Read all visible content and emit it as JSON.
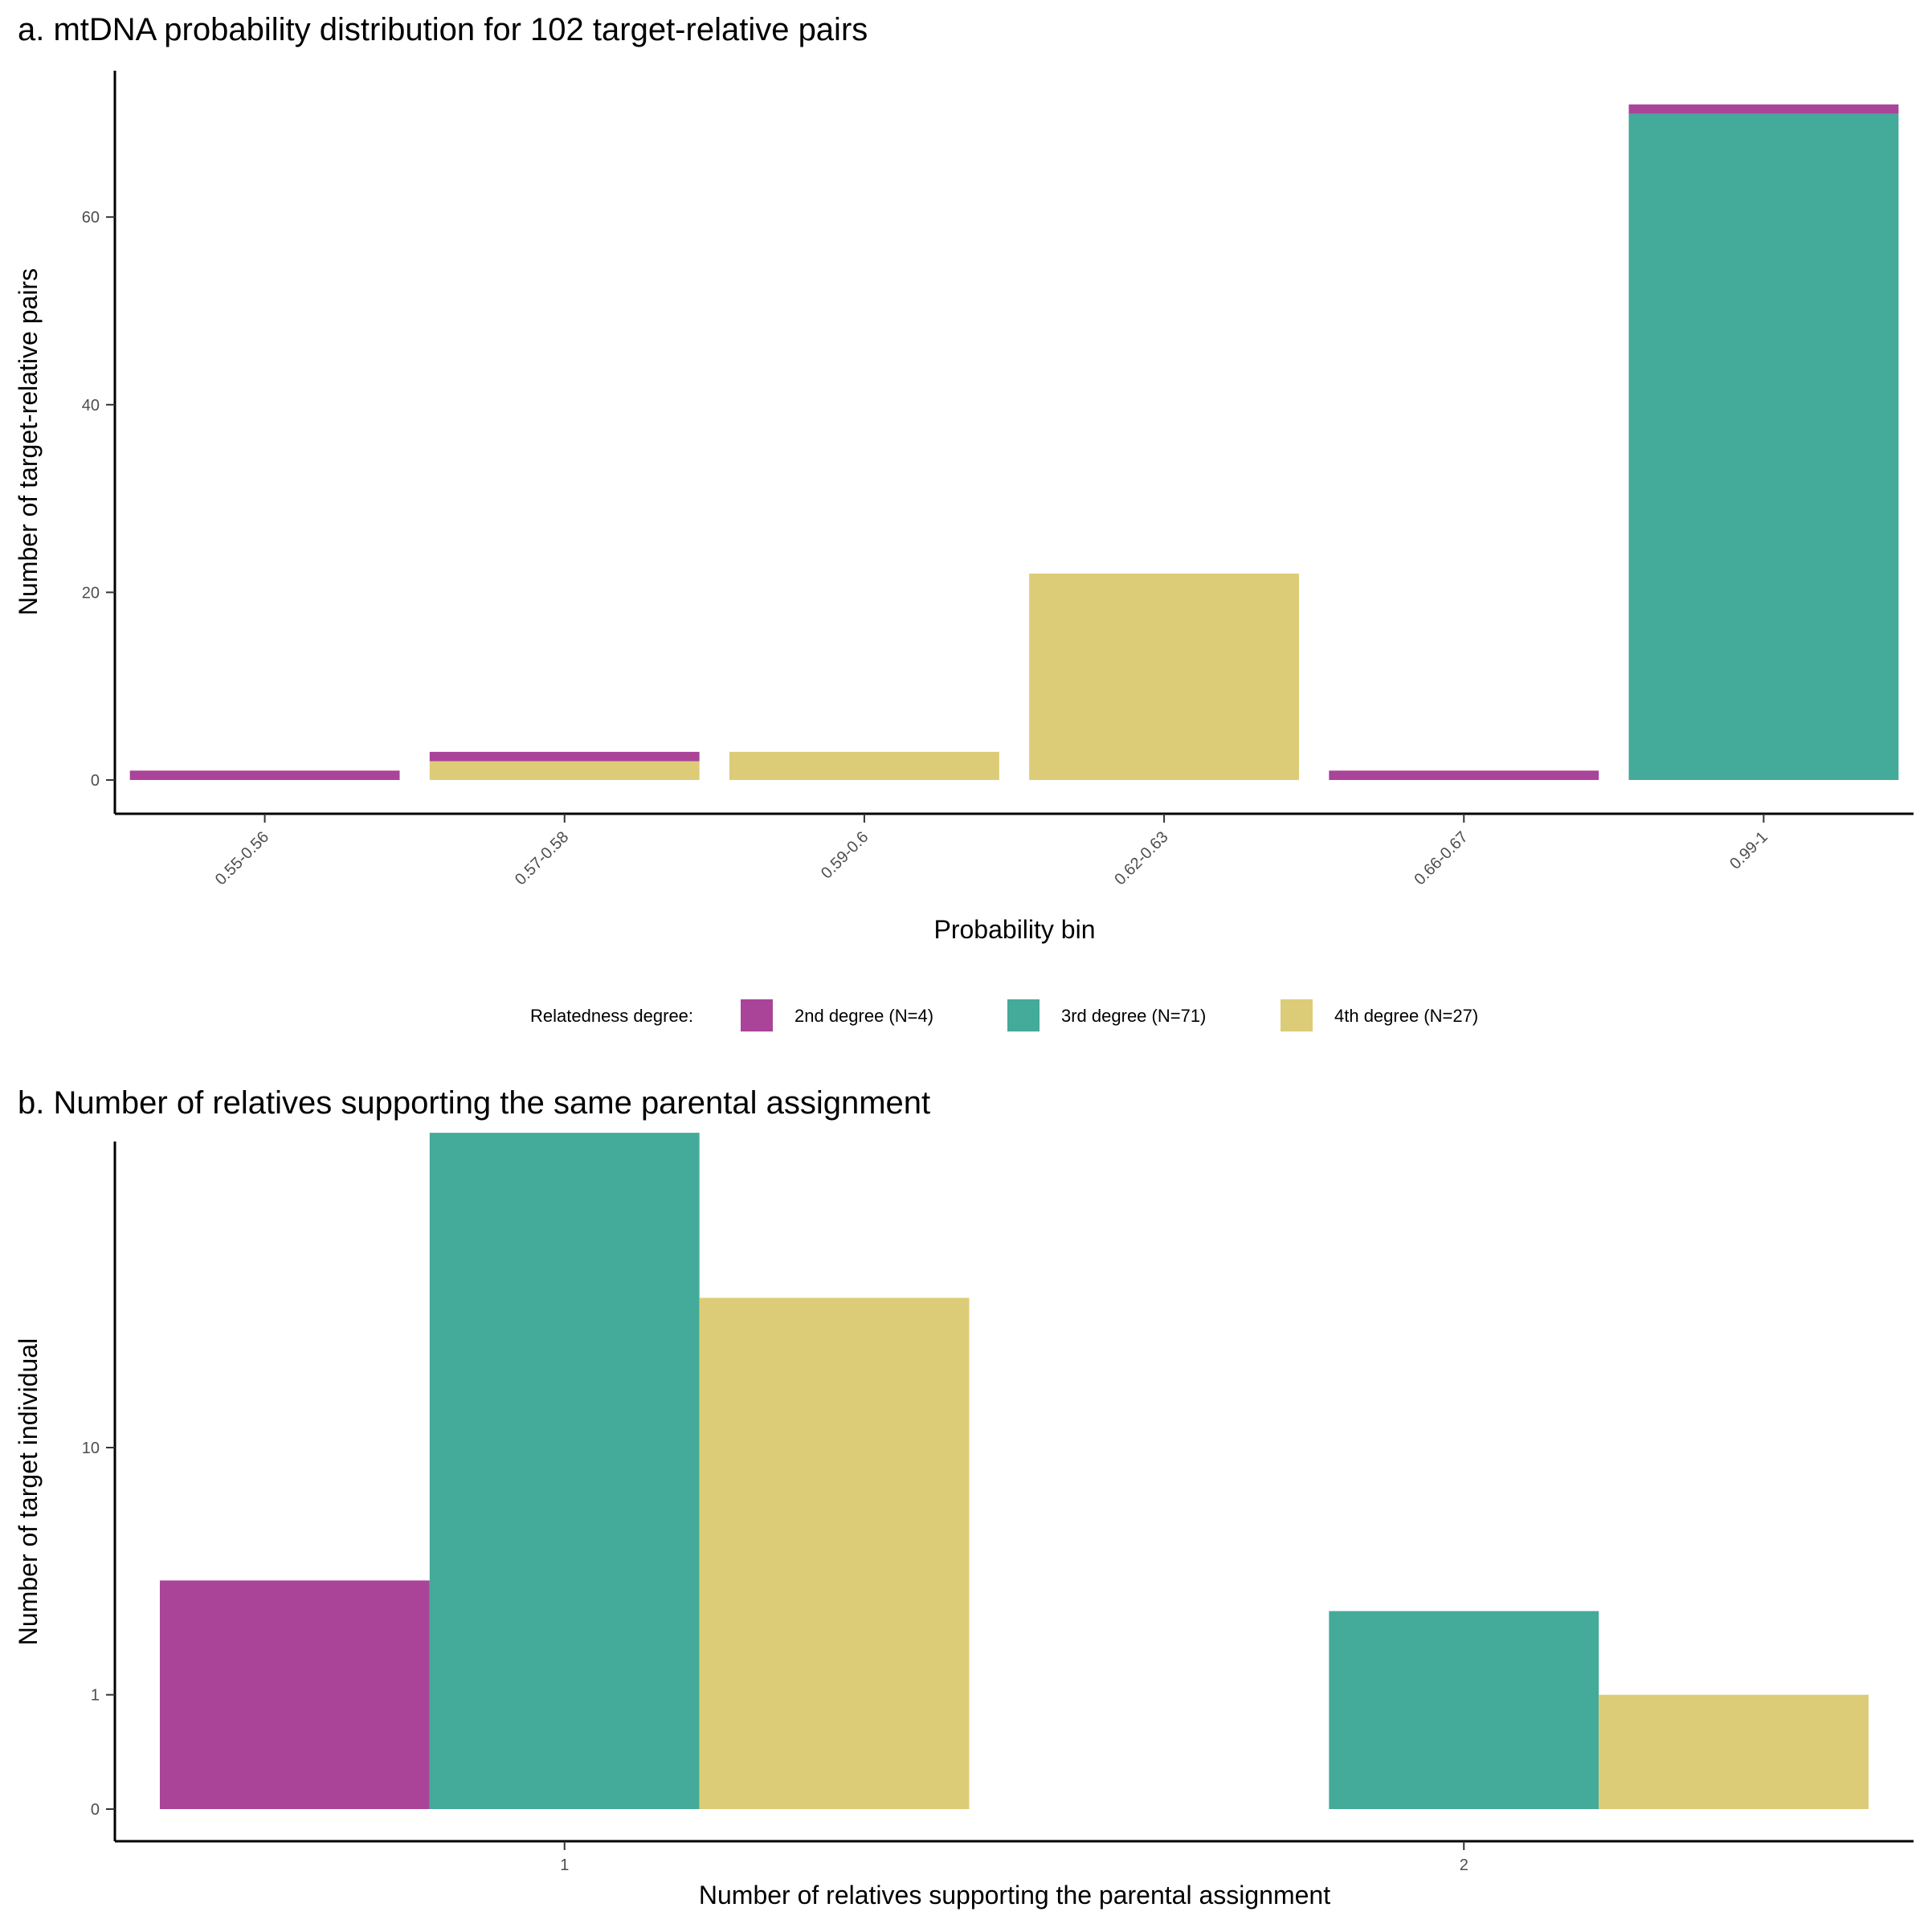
{
  "legend": {
    "title": "Relatedness degree:",
    "items": [
      {
        "key": "2nd",
        "label": "2nd degree (N=4)",
        "color": "#AA4499"
      },
      {
        "key": "3rd",
        "label": "3rd degree (N=71)",
        "color": "#44AA99"
      },
      {
        "key": "4th",
        "label": "4th degree (N=27)",
        "color": "#DDCC77"
      }
    ]
  },
  "chart_data": [
    {
      "type": "bar",
      "stacked": true,
      "title": "a. mtDNA probability distribution for 102 target-relative pairs",
      "xlabel": "Probability bin",
      "ylabel": "Number of target-relative pairs",
      "categories": [
        "0.55-0.56",
        "0.57-0.58",
        "0.59-0.6",
        "0.62-0.63",
        "0.66-0.67",
        "0.99-1"
      ],
      "series": [
        {
          "name": "4th degree (N=27)",
          "key": "4th",
          "values": [
            0,
            2,
            3,
            22,
            0,
            0
          ]
        },
        {
          "name": "3rd degree (N=71)",
          "key": "3rd",
          "values": [
            0,
            0,
            0,
            0,
            0,
            71
          ]
        },
        {
          "name": "2nd degree (N=4)",
          "key": "2nd",
          "values": [
            1,
            1,
            0,
            0,
            1,
            1
          ]
        }
      ],
      "yticks": [
        0,
        20,
        40,
        60
      ],
      "ylim": [
        -3.6,
        75.6
      ],
      "x_tick_angle": -45,
      "grid": false,
      "legend_position": "bottom"
    },
    {
      "type": "bar",
      "stacked": false,
      "dodged": true,
      "title": "b. Number of relatives supporting the same parental assignment",
      "xlabel": "Number of relatives supporting the parental assignment",
      "ylabel": "Number of target individual",
      "yscale": "sqrt",
      "categories": [
        "1",
        "2"
      ],
      "series": [
        {
          "name": "2nd degree (N=4)",
          "key": "2nd",
          "values": [
            4,
            0
          ]
        },
        {
          "name": "3rd degree (N=71)",
          "key": "3rd",
          "values": [
            35,
            3
          ]
        },
        {
          "name": "4th degree (N=27)",
          "key": "4th",
          "values": [
            20,
            1
          ]
        }
      ],
      "yticks": [
        0,
        1,
        10
      ],
      "grid": false
    }
  ]
}
